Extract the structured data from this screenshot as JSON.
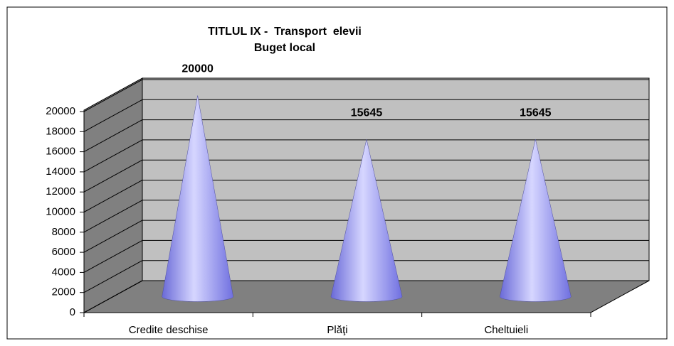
{
  "chart_data": {
    "type": "cone",
    "title": "TITLUL IX -  Transport  elevii",
    "subtitle": "Buget local",
    "categories": [
      "Credite deschise",
      "Plăţi",
      "Cheltuieli"
    ],
    "values": [
      20000,
      15645,
      15645
    ],
    "color": "#9999ff",
    "ylim": [
      0,
      20000
    ],
    "yticks": [
      0,
      2000,
      4000,
      6000,
      8000,
      10000,
      12000,
      14000,
      16000,
      18000,
      20000
    ],
    "grid": true
  }
}
